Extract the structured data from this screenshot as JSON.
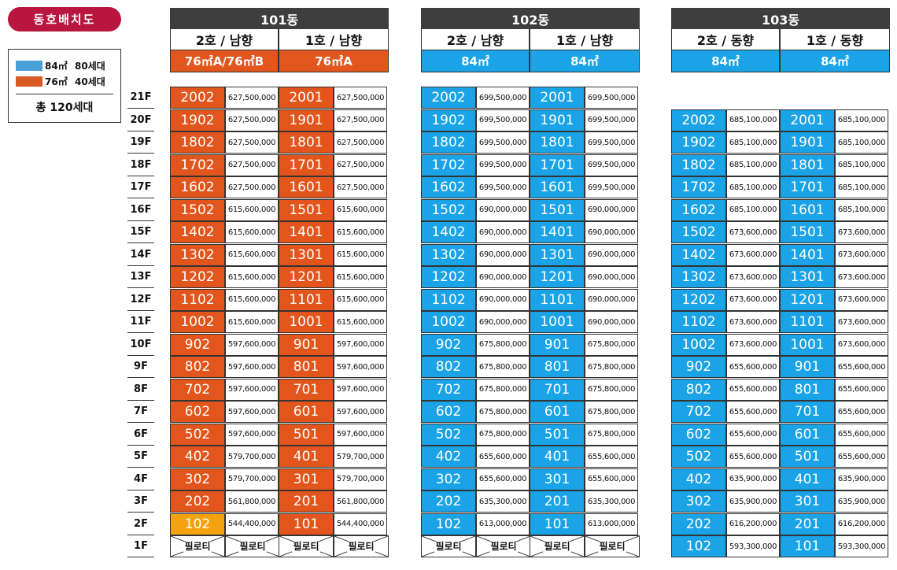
{
  "title": "동호배치도",
  "legend": {
    "items": [
      {
        "color": "#4a9fd8",
        "area": "84㎡",
        "count": "80세대"
      },
      {
        "color": "#d85a25",
        "area": "76㎡",
        "count": "40세대"
      }
    ],
    "total": "총 120세대"
  },
  "colors": {
    "orange": "#e2561d",
    "blue": "#1aa3e6",
    "highlight": "#f5a20f",
    "header": "#3e3e3e"
  },
  "floors": [
    "21F",
    "20F",
    "19F",
    "18F",
    "17F",
    "16F",
    "15F",
    "14F",
    "13F",
    "12F",
    "11F",
    "10F",
    "9F",
    "8F",
    "7F",
    "6F",
    "5F",
    "4F",
    "3F",
    "2F",
    "1F"
  ],
  "piloti_label": "필로티",
  "buildings": [
    {
      "name": "101동",
      "color_key": "orange",
      "lines": [
        {
          "label": "2호 / 남향",
          "type": "76㎡A/76㎡B"
        },
        {
          "label": "1호 / 남향",
          "type": "76㎡A"
        }
      ],
      "top_floor": 21,
      "ground_piloti": true,
      "highlight_room": "102",
      "rows": [
        [
          "2002",
          "627,500,000",
          "2001",
          "627,500,000"
        ],
        [
          "1902",
          "627,500,000",
          "1901",
          "627,500,000"
        ],
        [
          "1802",
          "627,500,000",
          "1801",
          "627,500,000"
        ],
        [
          "1702",
          "627,500,000",
          "1701",
          "627,500,000"
        ],
        [
          "1602",
          "627,500,000",
          "1601",
          "627,500,000"
        ],
        [
          "1502",
          "615,600,000",
          "1501",
          "615,600,000"
        ],
        [
          "1402",
          "615,600,000",
          "1401",
          "615,600,000"
        ],
        [
          "1302",
          "615,600,000",
          "1301",
          "615,600,000"
        ],
        [
          "1202",
          "615,600,000",
          "1201",
          "615,600,000"
        ],
        [
          "1102",
          "615,600,000",
          "1101",
          "615,600,000"
        ],
        [
          "1002",
          "615,600,000",
          "1001",
          "615,600,000"
        ],
        [
          "902",
          "597,600,000",
          "901",
          "597,600,000"
        ],
        [
          "802",
          "597,600,000",
          "801",
          "597,600,000"
        ],
        [
          "702",
          "597,600,000",
          "701",
          "597,600,000"
        ],
        [
          "602",
          "597,600,000",
          "601",
          "597,600,000"
        ],
        [
          "502",
          "597,600,000",
          "501",
          "597,600,000"
        ],
        [
          "402",
          "579,700,000",
          "401",
          "579,700,000"
        ],
        [
          "302",
          "579,700,000",
          "301",
          "579,700,000"
        ],
        [
          "202",
          "561,800,000",
          "201",
          "561,800,000"
        ],
        [
          "102",
          "544,400,000",
          "101",
          "544,400,000"
        ]
      ]
    },
    {
      "name": "102동",
      "color_key": "blue",
      "lines": [
        {
          "label": "2호 / 남향",
          "type": "84㎡"
        },
        {
          "label": "1호 / 남향",
          "type": "84㎡"
        }
      ],
      "top_floor": 21,
      "ground_piloti": true,
      "rows": [
        [
          "2002",
          "699,500,000",
          "2001",
          "699,500,000"
        ],
        [
          "1902",
          "699,500,000",
          "1901",
          "699,500,000"
        ],
        [
          "1802",
          "699,500,000",
          "1801",
          "699,500,000"
        ],
        [
          "1702",
          "699,500,000",
          "1701",
          "699,500,000"
        ],
        [
          "1602",
          "699,500,000",
          "1601",
          "699,500,000"
        ],
        [
          "1502",
          "690,000,000",
          "1501",
          "690,000,000"
        ],
        [
          "1402",
          "690,000,000",
          "1401",
          "690,000,000"
        ],
        [
          "1302",
          "690,000,000",
          "1301",
          "690,000,000"
        ],
        [
          "1202",
          "690,000,000",
          "1201",
          "690,000,000"
        ],
        [
          "1102",
          "690,000,000",
          "1101",
          "690,000,000"
        ],
        [
          "1002",
          "690,000,000",
          "1001",
          "690,000,000"
        ],
        [
          "902",
          "675,800,000",
          "901",
          "675,800,000"
        ],
        [
          "802",
          "675,800,000",
          "801",
          "675,800,000"
        ],
        [
          "702",
          "675,800,000",
          "701",
          "675,800,000"
        ],
        [
          "602",
          "675,800,000",
          "601",
          "675,800,000"
        ],
        [
          "502",
          "675,800,000",
          "501",
          "675,800,000"
        ],
        [
          "402",
          "655,600,000",
          "401",
          "655,600,000"
        ],
        [
          "302",
          "655,600,000",
          "301",
          "655,600,000"
        ],
        [
          "202",
          "635,300,000",
          "201",
          "635,300,000"
        ],
        [
          "102",
          "613,000,000",
          "101",
          "613,000,000"
        ]
      ]
    },
    {
      "name": "103동",
      "color_key": "blue",
      "lines": [
        {
          "label": "2호 / 동향",
          "type": "84㎡"
        },
        {
          "label": "1호 / 동향",
          "type": "84㎡"
        }
      ],
      "top_floor": 20,
      "ground_piloti": false,
      "rows": [
        [
          "2002",
          "685,100,000",
          "2001",
          "685,100,000"
        ],
        [
          "1902",
          "685,100,000",
          "1901",
          "685,100,000"
        ],
        [
          "1802",
          "685,100,000",
          "1801",
          "685,100,000"
        ],
        [
          "1702",
          "685,100,000",
          "1701",
          "685,100,000"
        ],
        [
          "1602",
          "685,100,000",
          "1601",
          "685,100,000"
        ],
        [
          "1502",
          "673,600,000",
          "1501",
          "673,600,000"
        ],
        [
          "1402",
          "673,600,000",
          "1401",
          "673,600,000"
        ],
        [
          "1302",
          "673,600,000",
          "1301",
          "673,600,000"
        ],
        [
          "1202",
          "673,600,000",
          "1201",
          "673,600,000"
        ],
        [
          "1102",
          "673,600,000",
          "1101",
          "673,600,000"
        ],
        [
          "1002",
          "673,600,000",
          "1001",
          "673,600,000"
        ],
        [
          "902",
          "655,600,000",
          "901",
          "655,600,000"
        ],
        [
          "802",
          "655,600,000",
          "801",
          "655,600,000"
        ],
        [
          "702",
          "655,600,000",
          "701",
          "655,600,000"
        ],
        [
          "602",
          "655,600,000",
          "601",
          "655,600,000"
        ],
        [
          "502",
          "655,600,000",
          "501",
          "655,600,000"
        ],
        [
          "402",
          "635,900,000",
          "401",
          "635,900,000"
        ],
        [
          "302",
          "635,900,000",
          "301",
          "635,900,000"
        ],
        [
          "202",
          "616,200,000",
          "201",
          "616,200,000"
        ],
        [
          "102",
          "593,300,000",
          "101",
          "593,300,000"
        ]
      ]
    }
  ]
}
